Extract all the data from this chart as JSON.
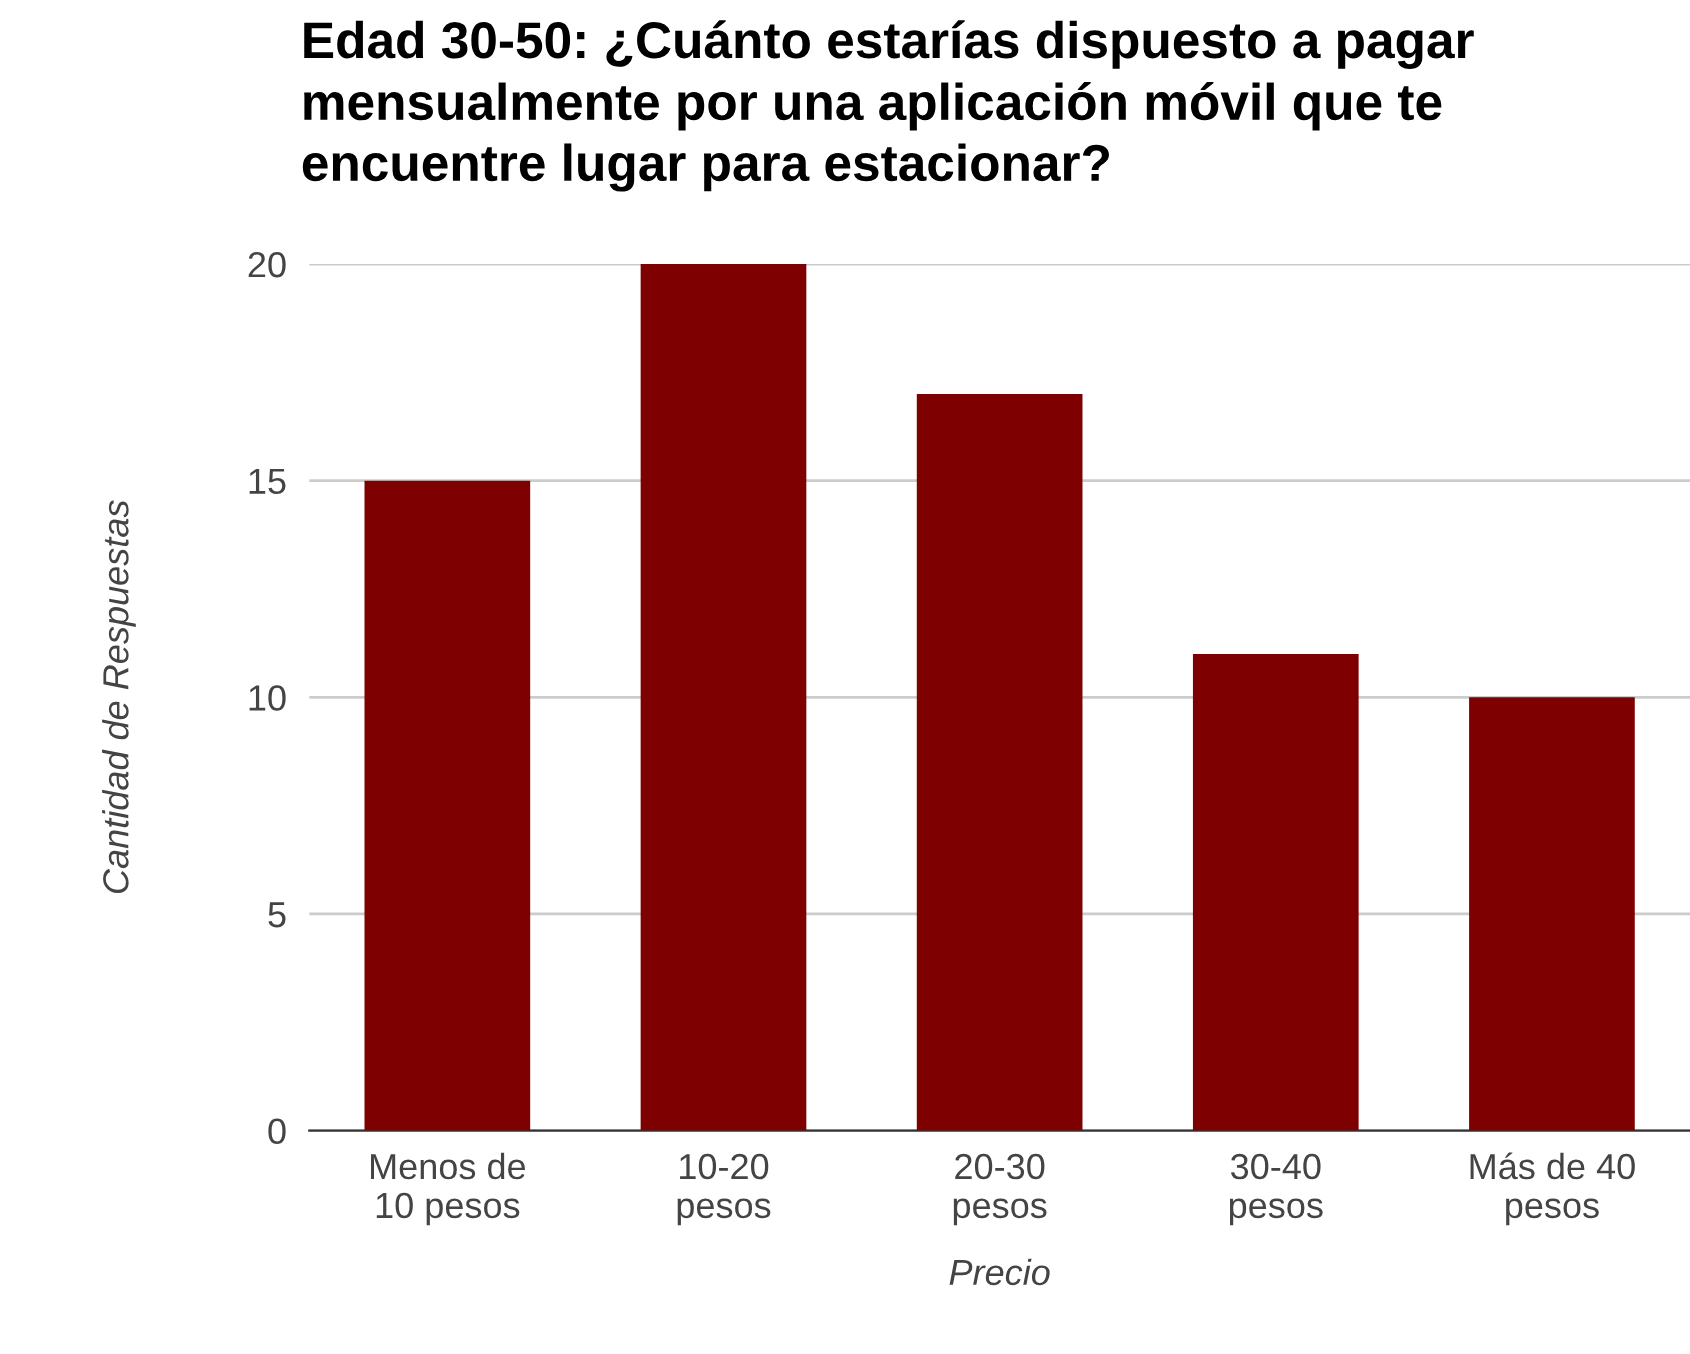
{
  "chart_data": {
    "type": "bar",
    "title": "Edad 30-50: ¿Cuánto estarías dispuesto a pagar mensualmente por una aplicación móvil que te encuentre lugar para estacionar?",
    "xlabel": "Precio",
    "ylabel": "Cantidad de Respuestas",
    "categories": [
      "Menos de\n10 pesos",
      "10-20\npesos",
      "20-30\npesos",
      "30-40\npesos",
      "Más de 40\npesos"
    ],
    "values": [
      15,
      20,
      17,
      11,
      10
    ],
    "color": "#7f0000",
    "ylim": [
      0,
      20
    ],
    "yticks": [
      0,
      5,
      10,
      15,
      20
    ],
    "grid": "y",
    "legend": false
  }
}
